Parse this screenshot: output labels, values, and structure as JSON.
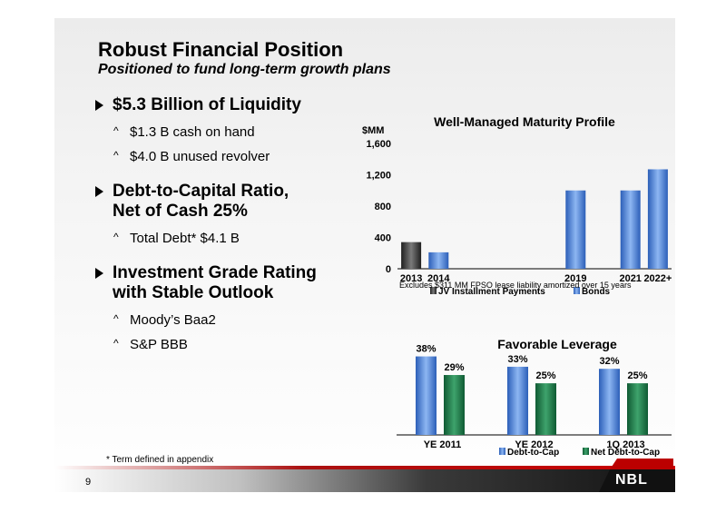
{
  "slide": {
    "title": "Robust Financial Position",
    "subtitle": "Positioned to fund long-term growth plans",
    "footnote": "* Term defined in appendix",
    "page_number": "9",
    "logo_text": "NBL"
  },
  "bullets": [
    {
      "text": "$5.3 Billion of Liquidity",
      "subs": [
        "$1.3 B cash on hand",
        "$4.0 B unused revolver"
      ]
    },
    {
      "text": "Debt-to-Capital Ratio, Net of Cash 25%",
      "line1": "Debt-to-Capital Ratio,",
      "line2": "Net of Cash 25%",
      "subs": [
        "Total Debt* $4.1 B"
      ]
    },
    {
      "text": "Investment Grade Rating with Stable Outlook",
      "line1": "Investment Grade Rating",
      "line2": "with Stable Outlook",
      "subs": [
        "Moody’s Baa2",
        "S&P BBB"
      ]
    }
  ],
  "chart_data": [
    {
      "type": "bar",
      "title": "Well-Managed Maturity Profile",
      "ylabel": "$MM",
      "ylim": [
        0,
        1600
      ],
      "yticks": [
        "0",
        "400",
        "800",
        "1,200",
        "1,600"
      ],
      "categories": [
        "2013",
        "2014",
        "",
        "",
        "",
        "",
        "2019",
        "",
        "2021",
        "2022+"
      ],
      "series": [
        {
          "name": "JV Installment Payments",
          "values": [
            340,
            null,
            null,
            null,
            null,
            null,
            null,
            null,
            null,
            null
          ],
          "color": "#3a3a3a"
        },
        {
          "name": "Bonds",
          "values": [
            null,
            210,
            null,
            null,
            null,
            null,
            1000,
            null,
            1000,
            1270
          ],
          "color": "#4f83d9"
        }
      ],
      "note": "Excludes $311 MM FPSO lease liability amortized over 15 years",
      "legend": "bottom",
      "grid": false
    },
    {
      "type": "bar",
      "title": "Favorable Leverage",
      "categories": [
        "YE 2011",
        "YE 2012",
        "1Q 2013"
      ],
      "series": [
        {
          "name": "Debt-to-Cap",
          "values": [
            38,
            33,
            32
          ],
          "labels": [
            "38%",
            "33%",
            "32%"
          ],
          "color": "#4f83d9"
        },
        {
          "name": "Net Debt-to-Cap",
          "values": [
            29,
            25,
            25
          ],
          "labels": [
            "29%",
            "25%",
            "25%"
          ],
          "color": "#1f7a4a"
        }
      ],
      "ylim": [
        0,
        40
      ],
      "legend": "bottom",
      "grid": false
    }
  ]
}
